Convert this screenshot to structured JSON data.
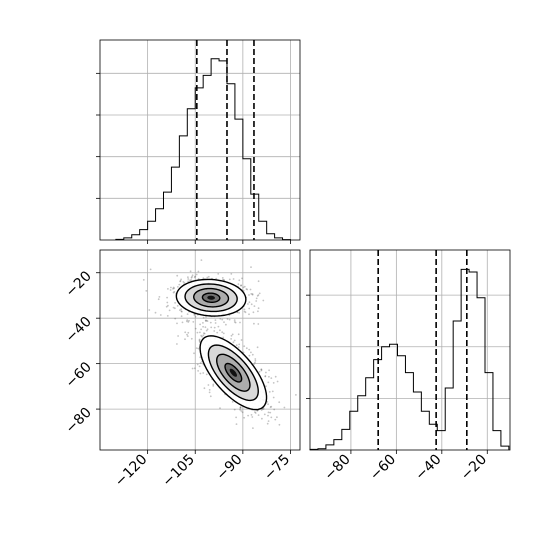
{
  "chart_data": {
    "type": "corner",
    "parameters": [
      {
        "range": [
          -135,
          -72
        ],
        "ticks": [
          -120,
          -105,
          -90,
          -75
        ],
        "quantiles": [
          -104.5,
          -95.0,
          -86.5
        ]
      },
      {
        "range": [
          -98,
          -10
        ],
        "ticks": [
          -80,
          -60,
          -40,
          -20
        ],
        "quantiles": [
          -68.0,
          -42.5,
          -29.0
        ]
      }
    ],
    "hist_x": {
      "bin_edges": [
        -130,
        -127.5,
        -125,
        -122.5,
        -120,
        -117.5,
        -115,
        -112.5,
        -110,
        -107.5,
        -105,
        -102.5,
        -100,
        -97.5,
        -95,
        -92.5,
        -90,
        -87.5,
        -85,
        -82.5,
        -80,
        -77.5,
        -75
      ],
      "counts": [
        0.3,
        1.0,
        2.5,
        5.0,
        9.0,
        15.0,
        23.0,
        35.0,
        50.0,
        63.0,
        73.0,
        79.0,
        87.0,
        86.0,
        75.0,
        58.0,
        39.0,
        22.0,
        9.0,
        3.0,
        1.0,
        0.2
      ],
      "ymax": 96,
      "y_ticks": [
        20,
        40,
        60,
        80
      ]
    },
    "hist_y": {
      "bin_edges": [
        -98,
        -94.5,
        -91,
        -87.5,
        -84,
        -80.5,
        -77,
        -73.5,
        -70,
        -66.5,
        -63,
        -59.5,
        -56,
        -52.5,
        -49,
        -45.5,
        -42,
        -38.5,
        -35,
        -31.5,
        -28,
        -24.5,
        -21,
        -17.5,
        -14,
        -10.5
      ],
      "counts": [
        0.5,
        1.0,
        4.0,
        8.0,
        16.0,
        30.0,
        42.0,
        56.0,
        70.0,
        80.0,
        82.0,
        73.0,
        60.0,
        45.0,
        30.0,
        20.0,
        15.0,
        48.0,
        100.0,
        140.0,
        138.0,
        118.0,
        60.0,
        15.0,
        3.0
      ],
      "ymax": 155,
      "y_ticks": [
        40,
        80,
        120
      ]
    },
    "scatter_2d": {
      "modes": [
        {
          "center": [
            -100,
            -31
          ],
          "sigma": [
            5.5,
            4.0
          ],
          "angle_deg": -8,
          "weight": 0.5
        },
        {
          "center": [
            -93,
            -64
          ],
          "sigma": [
            3.5,
            9.0
          ],
          "angle_deg": 28,
          "weight": 0.5
        }
      ],
      "contour_levels_sigma": [
        0.5,
        1.0,
        1.5,
        2.0
      ]
    }
  }
}
